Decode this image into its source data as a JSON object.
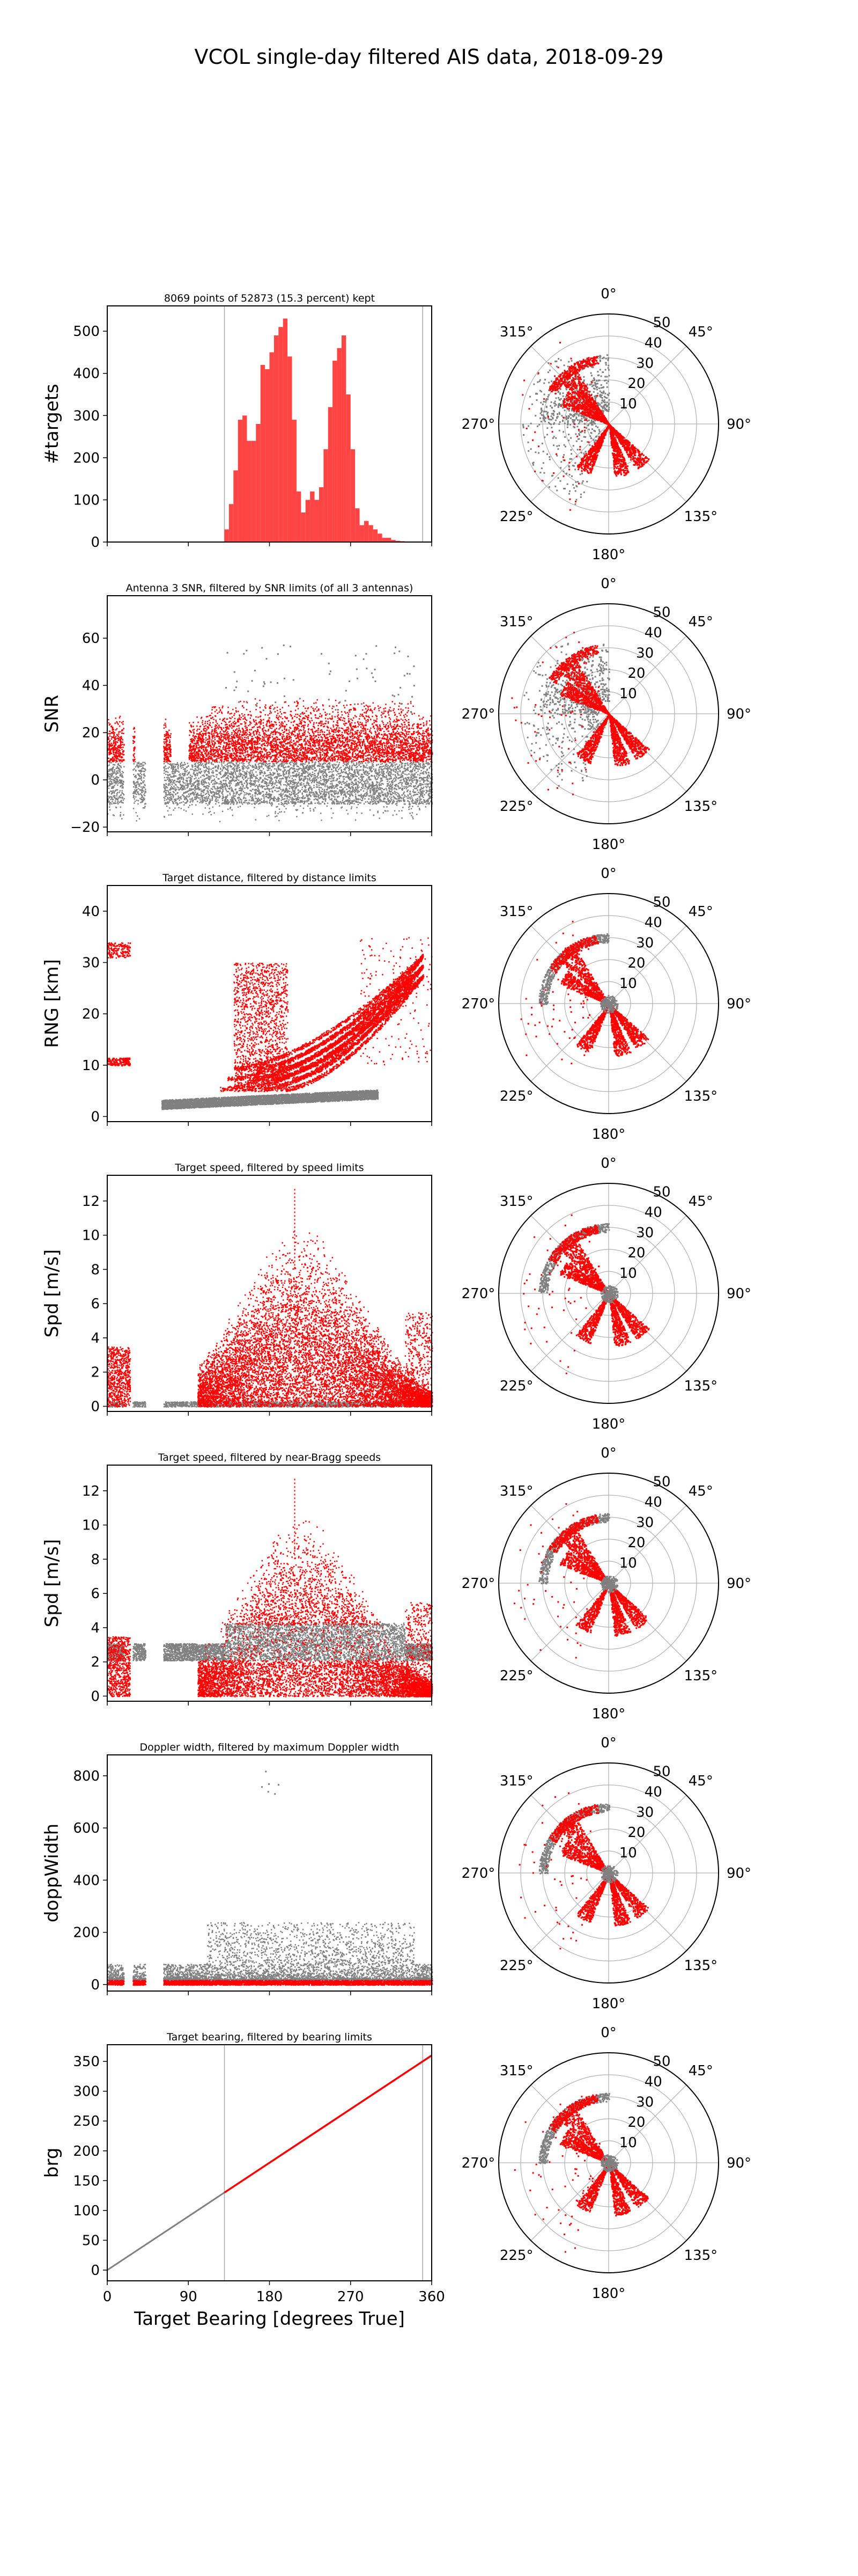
{
  "suptitle": "VCOL single-day filtered AIS data, 2018-09-29",
  "colors": {
    "kept": "#ff0000",
    "rejected": "#808080",
    "histogram": "#ff4444",
    "grid": "#b0b0b0"
  },
  "xlabel": "Target Bearing [degrees True]",
  "x_ticks": [
    "0",
    "90",
    "180",
    "270",
    "360"
  ],
  "polar_ticks": {
    "angles": [
      "0°",
      "45°",
      "90°",
      "135°",
      "180°",
      "225°",
      "270°",
      "315°"
    ],
    "radii": [
      "10",
      "20",
      "30",
      "40",
      "50"
    ]
  },
  "chart_data": [
    {
      "type": "bar",
      "title": "8069 points of 52873 (15.3 percent) kept",
      "ylabel": "#targets",
      "xlim": [
        0,
        360
      ],
      "ylim": [
        0,
        560
      ],
      "yticks": [
        "0",
        "100",
        "200",
        "300",
        "400",
        "500"
      ],
      "bearing_limits": [
        130,
        350
      ],
      "bin_width": 5,
      "bin_starts": [
        130,
        135,
        140,
        145,
        150,
        155,
        160,
        165,
        170,
        175,
        180,
        185,
        190,
        195,
        200,
        205,
        210,
        215,
        220,
        225,
        230,
        235,
        240,
        245,
        250,
        255,
        260,
        265,
        270,
        275,
        280,
        285,
        290,
        295,
        300,
        305,
        310,
        315,
        320,
        325,
        330,
        335
      ],
      "values": [
        30,
        90,
        170,
        290,
        300,
        240,
        240,
        280,
        420,
        410,
        450,
        490,
        510,
        530,
        440,
        290,
        120,
        70,
        100,
        120,
        100,
        130,
        220,
        320,
        430,
        460,
        490,
        350,
        220,
        80,
        40,
        50,
        40,
        30,
        20,
        10,
        10,
        5,
        3,
        2,
        1,
        1
      ]
    },
    {
      "type": "scatter",
      "title": "Antenna 3 SNR, filtered by SNR limits (of all 3 antennas)",
      "ylabel": "SNR",
      "xlim": [
        0,
        360
      ],
      "ylim": [
        -22,
        78
      ],
      "yticks": [
        "−20",
        "0",
        "20",
        "40",
        "60"
      ],
      "series": [
        {
          "name": "",
          "x": [
            5,
            20,
            45,
            75,
            100,
            115,
            130,
            160,
            190,
            205,
            240,
            260,
            285,
            300,
            320,
            345
          ],
          "y": [
            -3,
            1,
            -4,
            2,
            -1,
            -5,
            0,
            -7,
            5,
            -3,
            2,
            -6,
            4,
            -2,
            -8,
            1
          ]
        },
        {
          "name": "",
          "x": [
            5,
            20,
            50,
            90,
            110,
            140,
            155,
            165,
            180,
            200,
            230,
            250,
            270,
            300,
            320,
            350
          ],
          "y": [
            18,
            12,
            30,
            20,
            22,
            30,
            18,
            35,
            28,
            24,
            38,
            28,
            34,
            22,
            20,
            16
          ]
        }
      ]
    },
    {
      "type": "scatter",
      "title": "Target distance, filtered by distance limits",
      "ylabel": "RNG [km]",
      "xlim": [
        0,
        360
      ],
      "ylim": [
        -1,
        45
      ],
      "yticks": [
        "0",
        "10",
        "20",
        "30",
        "40"
      ],
      "series": [
        {
          "name": "",
          "x": [
            60,
            90,
            130,
            150,
            170,
            180,
            220,
            260,
            290,
            300
          ],
          "y": [
            2.5,
            2.8,
            3.1,
            3.0,
            2.6,
            3.4,
            2.4,
            3.0,
            4.8,
            5.2
          ]
        },
        {
          "name": "",
          "x": [
            5,
            20,
            155,
            165,
            180,
            200,
            210,
            240,
            270,
            300,
            330,
            350
          ],
          "y": [
            10,
            12,
            28,
            25,
            12,
            18,
            15,
            9,
            18,
            24,
            20,
            32
          ]
        }
      ]
    },
    {
      "type": "scatter",
      "title": "Target speed, filtered by speed limits",
      "ylabel": "Spd [m/s]",
      "xlim": [
        0,
        360
      ],
      "ylim": [
        -0.3,
        13.5
      ],
      "yticks": [
        "0",
        "2",
        "4",
        "6",
        "8",
        "10",
        "12"
      ],
      "series": [
        {
          "name": "",
          "x": [
            10,
            40,
            80,
            120,
            160,
            200,
            240,
            280,
            320,
            355
          ],
          "y": [
            0.1,
            0.05,
            0.1,
            0.1,
            0.1,
            0.05,
            0.1,
            0.1,
            0.05,
            0.1
          ]
        },
        {
          "name": "",
          "x": [
            5,
            25,
            100,
            130,
            150,
            175,
            200,
            215,
            240,
            265,
            290,
            320,
            350
          ],
          "y": [
            2,
            4,
            1.5,
            3,
            6,
            8,
            10,
            11,
            9,
            7,
            5,
            3,
            2
          ]
        }
      ]
    },
    {
      "type": "scatter",
      "title": "Target speed, filtered by near-Bragg speeds",
      "ylabel": "Spd [m/s]",
      "xlim": [
        0,
        360
      ],
      "ylim": [
        -0.3,
        13.5
      ],
      "yticks": [
        "0",
        "2",
        "4",
        "6",
        "8",
        "10",
        "12"
      ],
      "series": [
        {
          "name": "",
          "x": [
            20,
            70,
            120,
            150,
            180,
            210,
            240,
            270,
            300,
            330
          ],
          "y": [
            2.2,
            2.2,
            3,
            4,
            4.5,
            4,
            3.5,
            4,
            3,
            3
          ]
        },
        {
          "name": "",
          "x": [
            5,
            25,
            110,
            150,
            175,
            200,
            215,
            240,
            265,
            300,
            340
          ],
          "y": [
            1,
            3,
            2,
            6,
            8,
            10,
            11,
            9,
            7,
            5,
            3
          ]
        }
      ]
    },
    {
      "type": "scatter",
      "title": "Doppler width, filtered by maximum Doppler width",
      "ylabel": "doppWidth",
      "xlim": [
        0,
        360
      ],
      "ylim": [
        -25,
        880
      ],
      "yticks": [
        "0",
        "200",
        "400",
        "600",
        "800"
      ],
      "series": [
        {
          "name": "",
          "x": [
            10,
            30,
            70,
            110,
            140,
            160,
            180,
            200,
            220,
            250,
            280,
            310,
            340
          ],
          "y": [
            40,
            60,
            20,
            30,
            70,
            90,
            120,
            160,
            200,
            110,
            80,
            40,
            30
          ]
        },
        {
          "name": "",
          "x": [
            10,
            60,
            130,
            180,
            230,
            280,
            330,
            355
          ],
          "y": [
            8,
            6,
            5,
            7,
            6,
            8,
            5,
            6
          ]
        }
      ]
    },
    {
      "type": "scatter",
      "title": "Target bearing, filtered by bearing limits",
      "ylabel": "brg",
      "xlim": [
        0,
        360
      ],
      "ylim": [
        -18,
        378
      ],
      "yticks": [
        "0",
        "50",
        "100",
        "150",
        "200",
        "250",
        "300",
        "350"
      ],
      "bearing_limits": [
        130,
        350
      ],
      "series": [
        {
          "name": "",
          "x": [
            0,
            130
          ],
          "y": [
            0,
            130
          ]
        },
        {
          "name": "",
          "x": [
            130,
            360
          ],
          "y": [
            130,
            360
          ]
        }
      ]
    }
  ]
}
